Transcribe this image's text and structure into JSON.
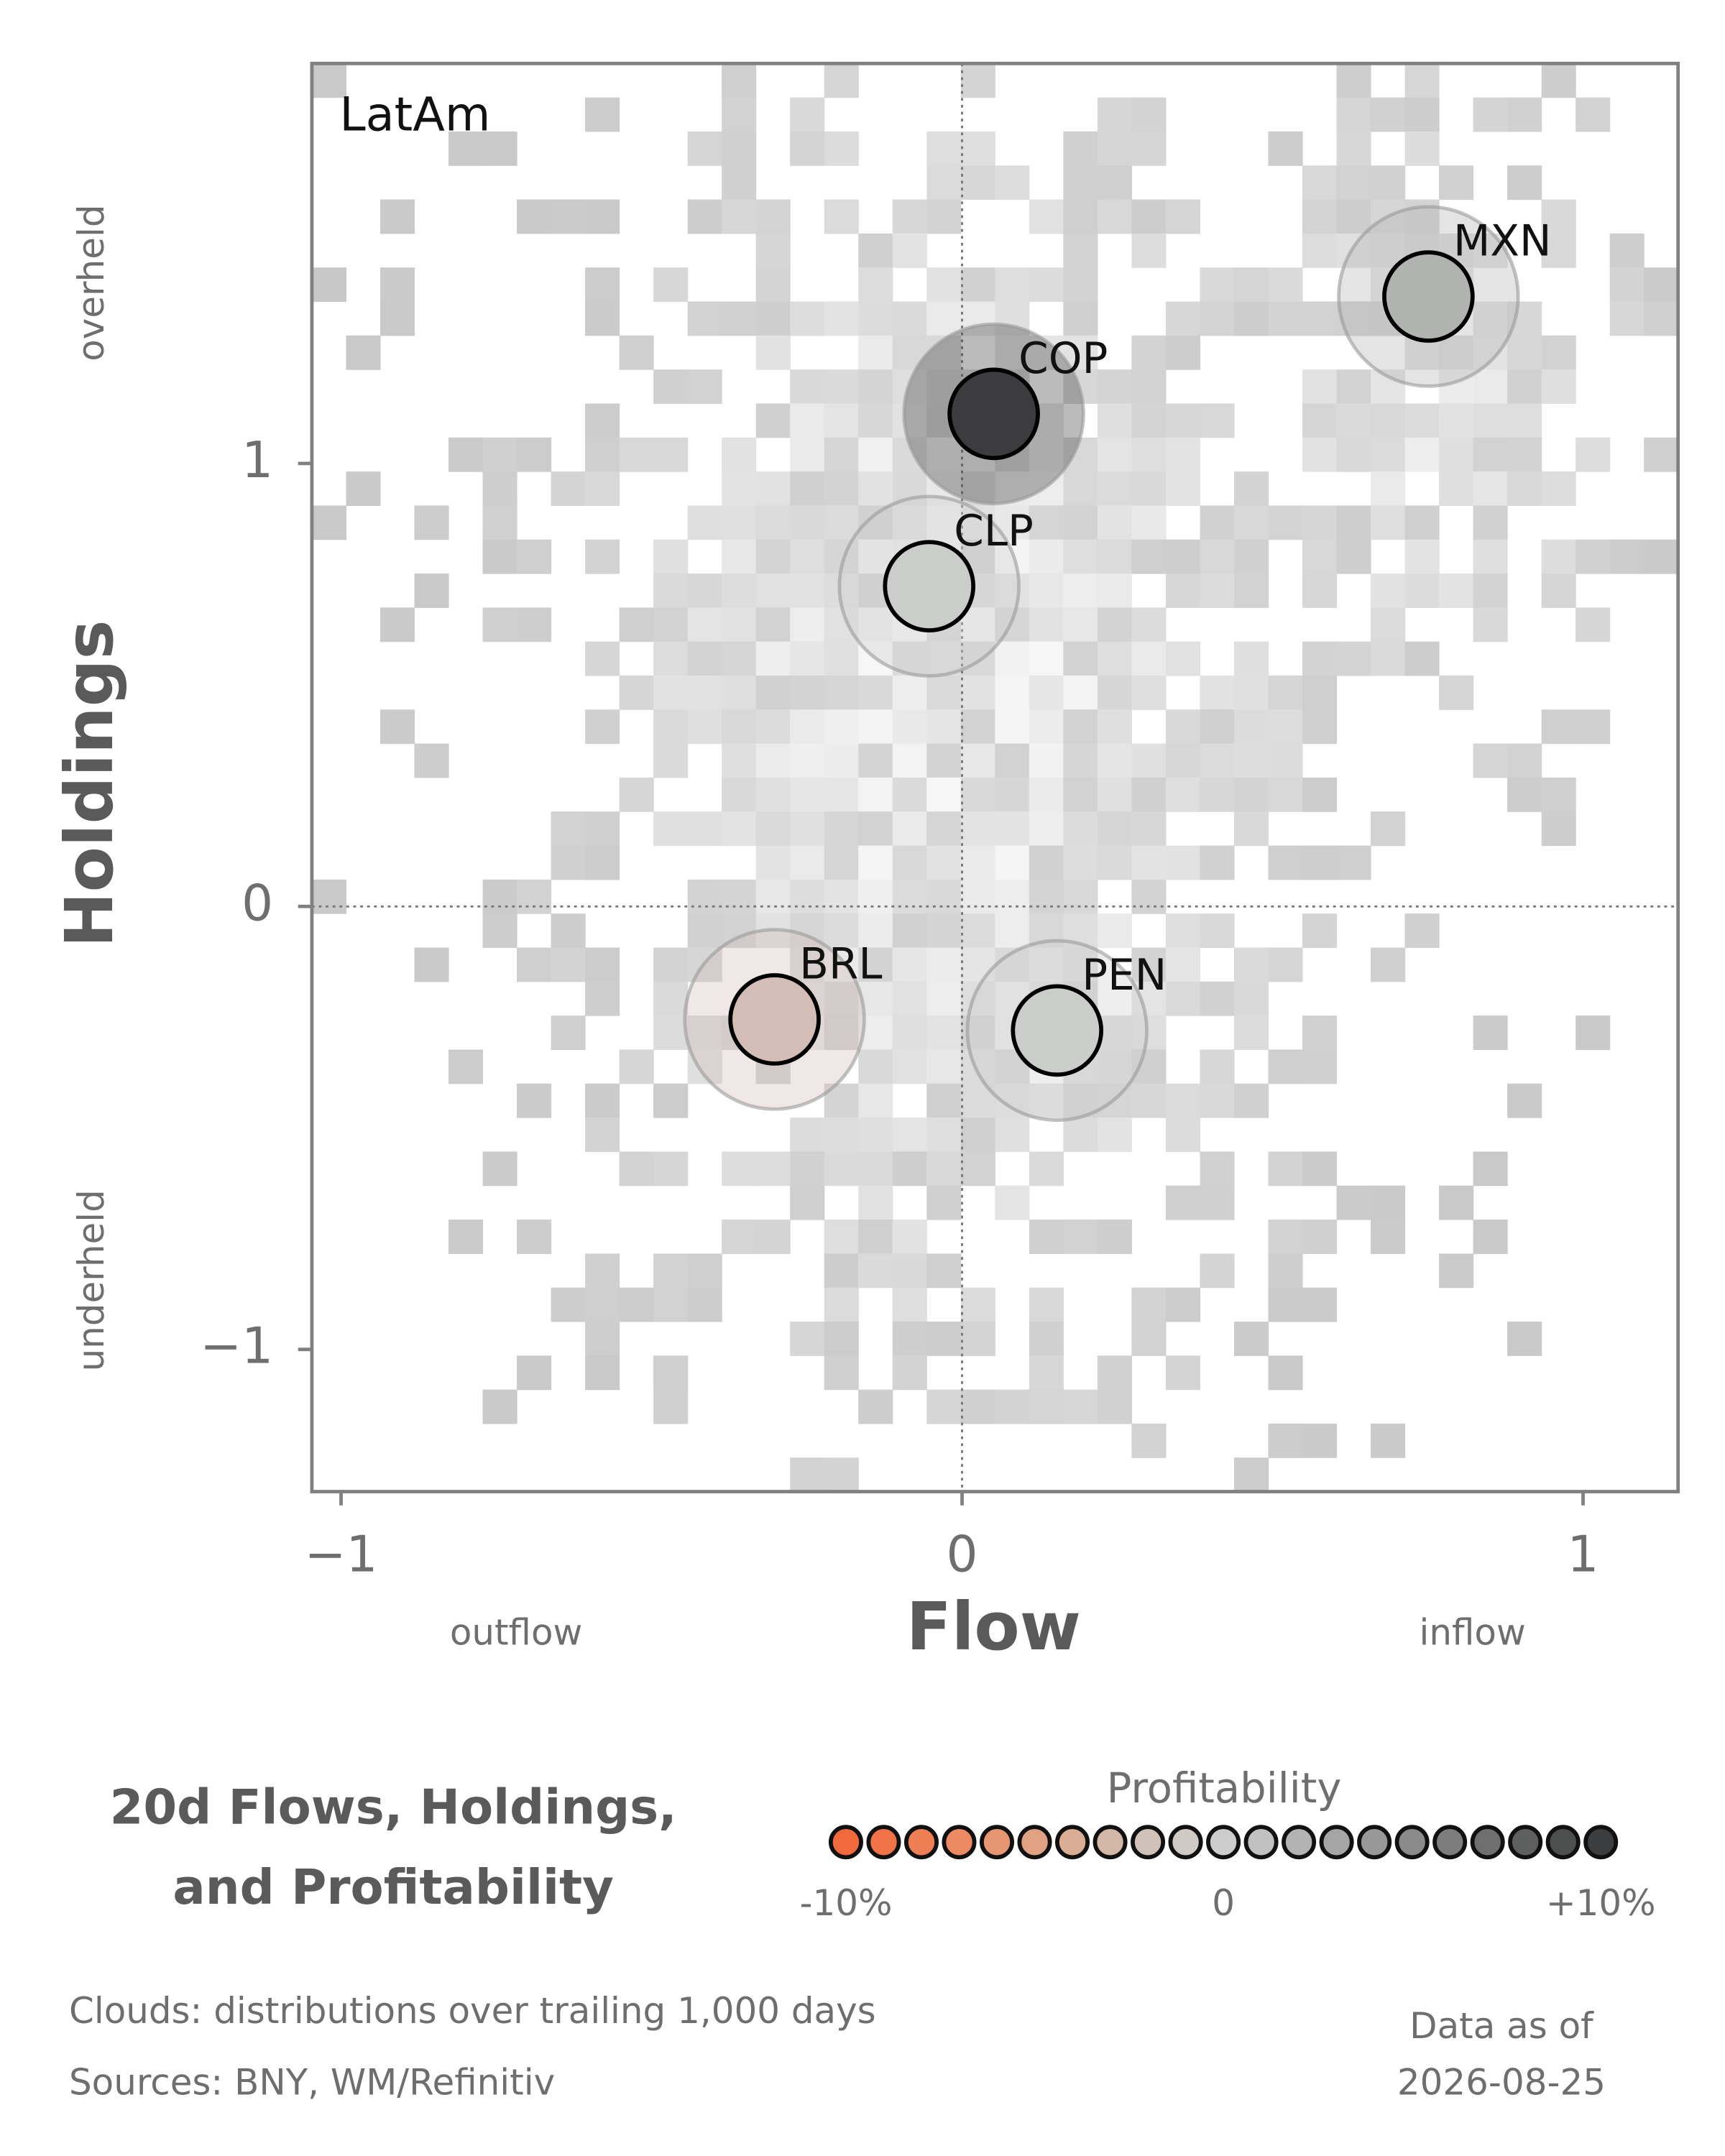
{
  "chart_data": {
    "type": "scatter",
    "panel_label": "LatAm",
    "title_lines": [
      "20d Flows, Holdings,",
      "and Profitability"
    ],
    "x_label": "Flow",
    "y_label": "Holdings",
    "x_low_label": "outflow",
    "x_high_label": "inflow",
    "y_high_label": "overheld",
    "y_low_label": "underheld",
    "xlim": [
      -1.047,
      1.153
    ],
    "ylim": [
      -1.321,
      1.903
    ],
    "xticks": [
      {
        "value": -1,
        "label": "−1"
      },
      0,
      1
    ],
    "yticks": [
      {
        "value": -1,
        "label": "−1"
      },
      0,
      1
    ],
    "points": [
      {
        "label": "MXN",
        "x": 0.751,
        "y": 1.377,
        "color": "#b1b3b1"
      },
      {
        "label": "COP",
        "x": 0.051,
        "y": 1.112,
        "color": "#3c3c3e"
      },
      {
        "label": "CLP",
        "x": -0.053,
        "y": 0.723,
        "color": "#cbcdcb"
      },
      {
        "label": "BRL",
        "x": -0.302,
        "y": -0.255,
        "color": "#d4bdb6"
      },
      {
        "label": "PEN",
        "x": 0.153,
        "y": -0.28,
        "color": "#cbcdcb"
      }
    ],
    "legend": {
      "title": "Profitability",
      "ticks": [
        {
          "value": -10,
          "label": "-10%"
        },
        0,
        {
          "value": 10,
          "label": "+10%"
        }
      ],
      "colors": [
        "#f26a3c",
        "#f07448",
        "#ee7f55",
        "#eb8a63",
        "#e69672",
        "#e0a283",
        "#d9ae95",
        "#d3b8a8",
        "#d0c2b9",
        "#cfcac6",
        "#cccdcc",
        "#c0c1c0",
        "#b2b3b2",
        "#a4a5a4",
        "#979897",
        "#8a8b8a",
        "#7c7d7c",
        "#6e6f6e",
        "#5e5f5f",
        "#4d4e4e",
        "#3c3d3e"
      ]
    },
    "notes": [
      "Clouds:  distributions over trailing 1,000 days",
      "Sources:  BNY, WM/Refinitiv"
    ],
    "asof_lines": [
      "Data as of",
      "2026-08-25"
    ]
  }
}
